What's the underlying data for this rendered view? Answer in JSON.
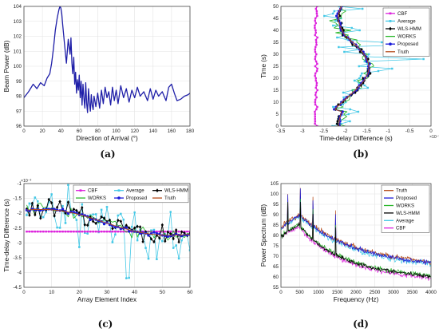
{
  "chart_data": [
    {
      "id": "a",
      "type": "line",
      "caption": "(a)",
      "xlabel": "Direction of Arrival (°)",
      "ylabel": "Beam Power (dB)",
      "xlim": [
        0,
        180
      ],
      "ylim": [
        96,
        104
      ],
      "xticks": [
        0,
        20,
        40,
        60,
        80,
        100,
        120,
        140,
        160,
        180
      ],
      "yticks": [
        96,
        97,
        98,
        99,
        100,
        101,
        102,
        103,
        104
      ],
      "grid": true,
      "color": "#1f1fa8",
      "x": [
        0,
        5,
        10,
        14,
        18,
        22,
        25,
        28,
        30,
        32,
        34,
        36,
        38,
        39,
        40,
        41,
        42,
        44,
        46,
        48,
        50,
        51,
        52,
        53,
        54,
        55,
        56,
        57,
        58,
        59,
        60,
        61,
        62,
        63,
        64,
        65,
        66,
        67,
        68,
        69,
        70,
        71,
        72,
        73,
        74,
        75,
        76,
        78,
        80,
        82,
        84,
        86,
        88,
        90,
        92,
        94,
        96,
        98,
        100,
        102,
        105,
        108,
        111,
        114,
        117,
        120,
        123,
        126,
        130,
        134,
        137,
        140,
        143,
        146,
        150,
        154,
        157,
        160,
        163,
        166,
        170,
        174,
        178,
        180
      ],
      "y": [
        97.9,
        98.3,
        98.8,
        98.5,
        98.9,
        98.7,
        99.2,
        99.5,
        100.2,
        101.2,
        102.4,
        103.2,
        103.8,
        104.0,
        103.9,
        103.5,
        102.8,
        101.5,
        100.2,
        101.8,
        100.8,
        101.9,
        100.2,
        99.5,
        100.6,
        98.8,
        99.6,
        98.2,
        99.1,
        98.4,
        99.4,
        97.9,
        99.0,
        97.4,
        98.8,
        97.9,
        97.2,
        98.9,
        97.5,
        96.9,
        98.5,
        97.6,
        97.0,
        98.1,
        97.4,
        97.1,
        98.0,
        97.3,
        98.2,
        97.2,
        98.4,
        97.5,
        98.6,
        97.9,
        98.3,
        97.4,
        98.6,
        97.7,
        98.4,
        97.5,
        98.7,
        97.9,
        98.5,
        97.6,
        98.4,
        97.9,
        98.6,
        98.0,
        98.3,
        97.7,
        98.5,
        97.8,
        98.4,
        98.0,
        98.3,
        97.7,
        98.6,
        98.8,
        98.2,
        97.7,
        97.8,
        98.0,
        98.1,
        98.2
      ]
    },
    {
      "id": "b",
      "type": "line",
      "caption": "(b)",
      "xlabel": "Time-delay Difference (s)",
      "ylabel": "Time (s)",
      "xlim": [
        -3.5,
        0
      ],
      "ylim": [
        0,
        50
      ],
      "xticks": [
        -3.5,
        -3,
        -2.5,
        -2,
        -1.5,
        -1,
        -0.5,
        0
      ],
      "yticks": [
        0,
        5,
        10,
        15,
        20,
        25,
        30,
        35,
        40,
        45,
        50
      ],
      "x_multiplier": "×10⁻³",
      "grid": true,
      "legend_position": "top-right",
      "series": [
        {
          "name": "CBF",
          "color": "#dd22dd",
          "marker": "s",
          "kind": "cbf"
        },
        {
          "name": "Average",
          "color": "#44c8e6",
          "marker": "s",
          "kind": "avg"
        },
        {
          "name": "WLS-HMM",
          "color": "#000000",
          "marker": "d",
          "kind": "wls"
        },
        {
          "name": "WORKS",
          "color": "#2db82d",
          "marker": "none",
          "kind": "works"
        },
        {
          "name": "Proposed",
          "color": "#1a1ad9",
          "marker": "o",
          "kind": "prop"
        },
        {
          "name": "Truth",
          "color": "#b54a1a",
          "marker": "none",
          "kind": "truth"
        }
      ]
    },
    {
      "id": "c",
      "type": "line",
      "caption": "(c)",
      "xlabel": "Array Element Index",
      "ylabel": "Time-delay Difference (s)",
      "xlim": [
        0,
        60
      ],
      "ylim": [
        -4.5,
        -1
      ],
      "xticks": [
        0,
        10,
        20,
        30,
        40,
        50,
        60
      ],
      "yticks": [
        -4.5,
        -4,
        -3.5,
        -3,
        -2.5,
        -2,
        -1.5,
        -1
      ],
      "y_multiplier": "×10⁻³",
      "grid": true,
      "legend_position": "top",
      "series": [
        {
          "name": "CBF",
          "color": "#dd22dd",
          "marker": "s",
          "kind": "cbf"
        },
        {
          "name": "Average",
          "color": "#44c8e6",
          "marker": "s",
          "kind": "avg"
        },
        {
          "name": "WLS-HMM",
          "color": "#000000",
          "marker": "d",
          "kind": "wls"
        },
        {
          "name": "WORKS",
          "color": "#2db82d",
          "marker": "none",
          "kind": "works"
        },
        {
          "name": "Proposed",
          "color": "#1a1ad9",
          "marker": "o",
          "kind": "prop"
        },
        {
          "name": "Truth",
          "color": "#b54a1a",
          "marker": "none",
          "kind": "truth"
        }
      ]
    },
    {
      "id": "d",
      "type": "line",
      "caption": "(d)",
      "xlabel": "Frequency (Hz)",
      "ylabel": "Power Spectrum (dB)",
      "xlim": [
        0,
        4000
      ],
      "ylim": [
        55,
        105
      ],
      "xticks": [
        0,
        500,
        1000,
        1500,
        2000,
        2500,
        3000,
        3500,
        4000
      ],
      "yticks": [
        55,
        60,
        65,
        70,
        75,
        80,
        85,
        90,
        95,
        100,
        105
      ],
      "grid": true,
      "legend_position": "top-right",
      "series": [
        {
          "name": "Truth",
          "color": "#b54a1a",
          "kind": "truth"
        },
        {
          "name": "Proposed",
          "color": "#1a1ad9",
          "kind": "prop"
        },
        {
          "name": "WORKS",
          "color": "#2db82d",
          "kind": "works"
        },
        {
          "name": "WLS-HMM",
          "color": "#000000",
          "kind": "wls"
        },
        {
          "name": "Average",
          "color": "#44c8e6",
          "kind": "avg"
        },
        {
          "name": "CBF",
          "color": "#dd22dd",
          "kind": "cbf"
        }
      ]
    }
  ]
}
